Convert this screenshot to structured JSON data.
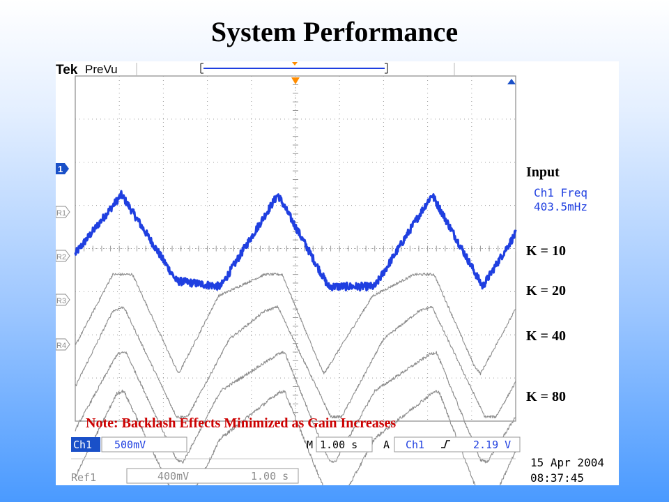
{
  "slide": {
    "title": "System Performance"
  },
  "scope": {
    "brand": "Tek",
    "mode": "PreVu",
    "labels": {
      "input": "Input",
      "k10": "K = 10",
      "k20": "K = 20",
      "k40": "K = 40",
      "k80": "K = 80"
    },
    "measurement": {
      "name": "Ch1 Freq",
      "value": "403.5mHz"
    },
    "note": "Note:  Backlash Effects Minimized as Gain Increases",
    "channel_markers": [
      "1",
      "R1",
      "R2",
      "R3",
      "R4"
    ],
    "status": {
      "ch1": "Ch1",
      "ch1_scale": "500mV",
      "timebase_prefix": "M",
      "timebase": "1.00 s",
      "trigger_prefix": "A",
      "trigger_source": "Ch1",
      "trigger_level": "2.19 V",
      "ref1": "Ref1",
      "ref1_scale": "400mV",
      "ref1_time": "1.00 s",
      "date": "15 Apr  2004",
      "time": "08:37:45"
    },
    "colors": {
      "input_trace": "#1f3fe0",
      "ref_traces": "#8c8c8c",
      "note": "#cc0000",
      "grid": "#9a9a9a",
      "trigger_marker": "#ff8c00",
      "channel_badge": "#1a50c8"
    }
  },
  "chart_data": {
    "type": "line",
    "title": "",
    "xlabel": "",
    "ylabel": "",
    "xlim": [
      0,
      10
    ],
    "grid": true,
    "x_units": "s",
    "x_per_division": 1.0,
    "series": [
      {
        "name": "Input",
        "color": "#1f3fe0",
        "noise": 0.09,
        "points": [
          [
            0,
            -0.12
          ],
          [
            1.05,
            1.25
          ],
          [
            2.3,
            -0.75
          ],
          [
            3.3,
            -0.88
          ],
          [
            4.6,
            1.25
          ],
          [
            5.75,
            -0.88
          ],
          [
            6.8,
            -0.88
          ],
          [
            8.1,
            1.25
          ],
          [
            9.25,
            -0.88
          ],
          [
            10,
            0.35
          ]
        ]
      },
      {
        "name": "K = 10",
        "color": "#8c8c8c",
        "noise": 0.03,
        "points": [
          [
            0,
            -2.25
          ],
          [
            0.85,
            -0.6
          ],
          [
            1.3,
            -0.6
          ],
          [
            2.25,
            -2.7
          ],
          [
            2.35,
            -2.9
          ],
          [
            3.25,
            -1.1
          ],
          [
            4.3,
            -0.6
          ],
          [
            4.7,
            -0.6
          ],
          [
            5.55,
            -2.7
          ],
          [
            5.65,
            -2.9
          ],
          [
            6.75,
            -1.1
          ],
          [
            7.7,
            -0.6
          ],
          [
            8.15,
            -0.6
          ],
          [
            9.05,
            -2.7
          ],
          [
            9.2,
            -2.9
          ],
          [
            10,
            -1.4
          ]
        ]
      },
      {
        "name": "K = 20",
        "color": "#8c8c8c",
        "noise": 0.03,
        "points": [
          [
            0,
            -3.2
          ],
          [
            0.85,
            -1.45
          ],
          [
            1.1,
            -1.35
          ],
          [
            2.3,
            -3.9
          ],
          [
            2.55,
            -3.9
          ],
          [
            3.5,
            -2.1
          ],
          [
            4.3,
            -1.45
          ],
          [
            4.6,
            -1.35
          ],
          [
            5.8,
            -3.9
          ],
          [
            6.05,
            -3.9
          ],
          [
            7.0,
            -2.1
          ],
          [
            7.8,
            -1.45
          ],
          [
            8.1,
            -1.35
          ],
          [
            9.3,
            -3.9
          ],
          [
            9.55,
            -3.9
          ],
          [
            10,
            -3.1
          ]
        ]
      },
      {
        "name": "K = 40",
        "color": "#8c8c8c",
        "noise": 0.035,
        "points": [
          [
            0,
            -4.2
          ],
          [
            0.95,
            -2.45
          ],
          [
            1.15,
            -2.4
          ],
          [
            2.3,
            -4.9
          ],
          [
            2.45,
            -4.95
          ],
          [
            3.3,
            -3.3
          ],
          [
            4.6,
            -2.45
          ],
          [
            4.75,
            -2.4
          ],
          [
            5.75,
            -4.9
          ],
          [
            5.9,
            -4.95
          ],
          [
            6.8,
            -3.3
          ],
          [
            8.05,
            -2.45
          ],
          [
            8.2,
            -2.4
          ],
          [
            9.2,
            -4.9
          ],
          [
            9.35,
            -4.95
          ],
          [
            10,
            -3.9
          ]
        ]
      },
      {
        "name": "K = 80",
        "color": "#8c8c8c",
        "noise": 0.04,
        "points": [
          [
            0,
            -5.3
          ],
          [
            0.95,
            -3.35
          ],
          [
            1.1,
            -3.3
          ],
          [
            2.35,
            -5.95
          ],
          [
            2.5,
            -6.0
          ],
          [
            3.3,
            -4.4
          ],
          [
            4.6,
            -3.35
          ],
          [
            4.75,
            -3.3
          ],
          [
            5.8,
            -5.95
          ],
          [
            5.95,
            -6.0
          ],
          [
            6.8,
            -4.4
          ],
          [
            8.1,
            -3.35
          ],
          [
            8.25,
            -3.3
          ],
          [
            9.25,
            -5.95
          ],
          [
            9.4,
            -6.0
          ],
          [
            10,
            -4.7
          ]
        ]
      }
    ]
  }
}
